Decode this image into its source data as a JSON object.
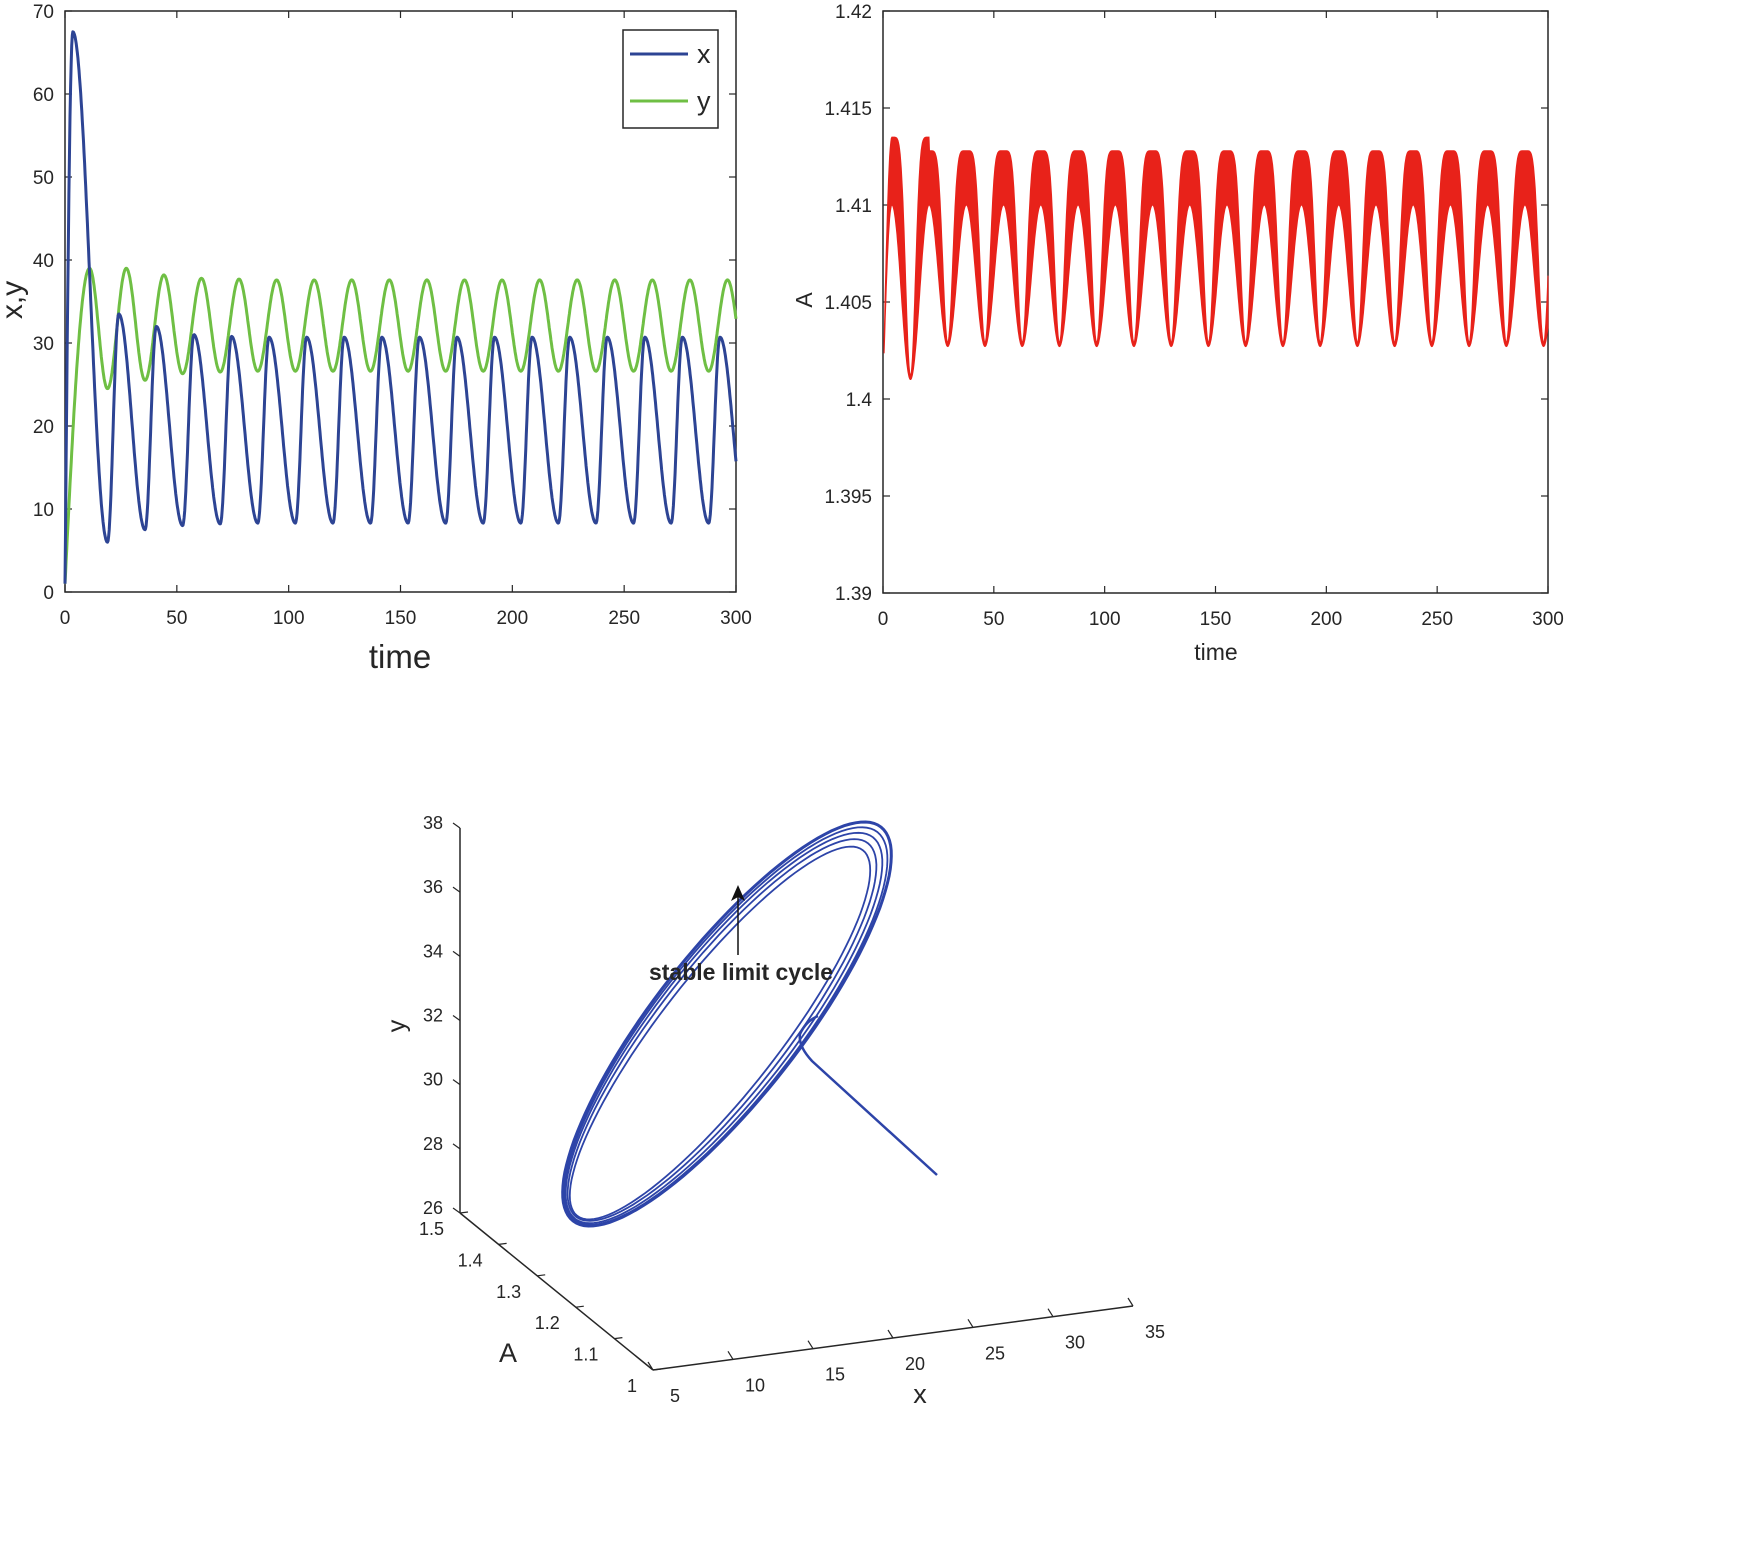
{
  "colors": {
    "x": "#2d4494",
    "y": "#6fbf44",
    "A": "#e8221a",
    "cycle": "#2d44a8",
    "axis": "#262626"
  },
  "chart_data": [
    {
      "type": "line",
      "xlabel": "time",
      "ylabel": "x,y",
      "xlim": [
        0,
        300
      ],
      "ylim": [
        0,
        70
      ],
      "xticks": [
        "0",
        "50",
        "100",
        "150",
        "200",
        "250",
        "300"
      ],
      "yticks": [
        "0",
        "10",
        "20",
        "30",
        "40",
        "50",
        "60",
        "70"
      ],
      "legend_position": "top-right",
      "series": [
        {
          "name": "x",
          "color": "#2d4494",
          "initial": 1,
          "first_peak": [
            3.5,
            67.5
          ],
          "first_trough": [
            19,
            6
          ],
          "period": 16.8,
          "peaks": [
            33.5,
            32,
            31,
            30.8,
            30.7
          ],
          "troughs": [
            6,
            7.5,
            8,
            8.2,
            8.3
          ],
          "end_value": 16.5
        },
        {
          "name": "y",
          "color": "#6fbf44",
          "initial": 1,
          "first_peak": [
            11,
            39
          ],
          "first_trough": [
            19,
            24.5
          ],
          "period": 16.8,
          "peaks": [
            39,
            38.2,
            37.8,
            37.7,
            37.6
          ],
          "troughs": [
            24.5,
            25.5,
            26.3,
            26.5,
            26.6
          ],
          "end_value": 35.5
        }
      ]
    },
    {
      "type": "area",
      "xlabel": "time",
      "ylabel": "A",
      "xlim": [
        0,
        300
      ],
      "ylim": [
        1.39,
        1.42
      ],
      "xticks": [
        "0",
        "50",
        "100",
        "150",
        "200",
        "250",
        "300"
      ],
      "yticks": [
        "1.39",
        "1.395",
        "1.4",
        "1.405",
        "1.41",
        "1.415",
        "1.42"
      ],
      "series": [
        {
          "name": "",
          "color": "#e8221a",
          "initial": 1.4005,
          "period": 16.8,
          "first_peak": [
            4,
            1.4135
          ],
          "first_trough": [
            15,
            1.401
          ],
          "band_top": 1.4128,
          "band_mid": 1.41,
          "band_bottom": 1.4027
        }
      ]
    },
    {
      "type": "line",
      "projection": "3d",
      "xlabel": "x",
      "ylabel": "A",
      "zlabel": "y",
      "xlim": [
        5,
        35
      ],
      "ylim": [
        1,
        1.5
      ],
      "zlim": [
        26,
        38
      ],
      "xticks": [
        "5",
        "10",
        "15",
        "20",
        "25",
        "30",
        "35"
      ],
      "yticks": [
        "1",
        "1.1",
        "1.2",
        "1.3",
        "1.4",
        "1.5"
      ],
      "zticks": [
        "26",
        "28",
        "30",
        "32",
        "34",
        "36",
        "38"
      ],
      "annotation": "stable limit cycle",
      "series": [
        {
          "name": "",
          "color": "#2d44a8",
          "start": [
            28.5,
            1.0,
            28.0
          ],
          "limit_cycle_x": [
            8.2,
            30.7
          ],
          "limit_cycle_y": [
            26.6,
            37.6
          ]
        }
      ]
    }
  ]
}
